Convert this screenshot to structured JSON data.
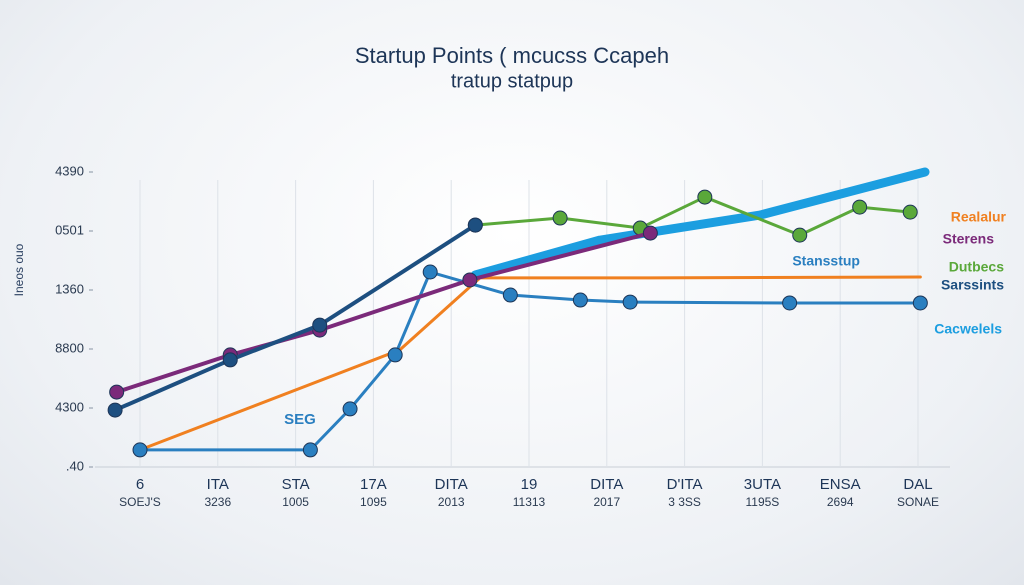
{
  "chart_data": {
    "type": "line",
    "title": "Startup Points ( mcucss Ccapeh",
    "subtitle": "tratup statpup",
    "y_label": "Ineos ouo",
    "y_labels": [
      "4390",
      "0501",
      "1360",
      "8800",
      "4300",
      ".40"
    ],
    "categories": [
      "6",
      "ITA",
      "STA",
      "17A",
      "DITA",
      "19",
      "DITA",
      "D'ITA",
      "3UTA",
      "ENSA",
      "DAL"
    ],
    "category_sublabels": [
      "SOEJ'S",
      "3236",
      "1005",
      "1095",
      "2013",
      "11313",
      "2017",
      "3 3SS",
      "1195S",
      "2694",
      "SONAE"
    ],
    "annotation": "SEG",
    "xlim": [
      -0.4,
      10.45
    ],
    "ylim": [
      0,
      100
    ],
    "grid": true,
    "series": [
      {
        "name": "Cacwelels",
        "color": "#1c9ee0",
        "width": 9,
        "markers": false,
        "x": [
          4.31,
          5.91,
          7.97,
          10.09
        ],
        "values": [
          65.1,
          76.9,
          85.4,
          100
        ]
      },
      {
        "name": "Dutbecs",
        "color": "#5aa83a",
        "width": 3,
        "markers": true,
        "x": [
          4.31,
          5.4,
          6.43,
          7.26,
          8.48,
          9.25,
          9.9
        ],
        "values": [
          82.0,
          84.4,
          81.0,
          91.5,
          78.6,
          88.1,
          86.4
        ]
      },
      {
        "name": "Realalur",
        "color": "#f08020",
        "width": 3,
        "markers": false,
        "x": [
          0,
          3.34,
          4.37,
          6.56,
          10.03
        ],
        "values": [
          5.8,
          39.7,
          64.1,
          64.1,
          64.4
        ]
      },
      {
        "name": "Stansstup",
        "color": "#2a7fc0",
        "width": 3,
        "markers": true,
        "x": [
          0,
          2.19,
          2.7,
          3.28,
          3.73,
          4.76,
          5.66,
          6.3,
          8.35,
          10.03
        ],
        "values": [
          5.8,
          5.8,
          19.7,
          38.0,
          66.1,
          58.3,
          56.6,
          55.9,
          55.6,
          55.6
        ]
      },
      {
        "name": "Sterens",
        "color": "#7b2a7a",
        "width": 4,
        "markers": true,
        "x": [
          -0.3,
          1.16,
          2.31,
          4.24,
          6.56
        ],
        "values": [
          25.4,
          38.0,
          46.4,
          63.4,
          79.3
        ]
      },
      {
        "name": "Sarssints",
        "color": "#1d4f80",
        "width": 4,
        "markers": true,
        "x": [
          -0.32,
          1.16,
          2.31,
          4.31
        ],
        "values": [
          19.3,
          36.3,
          48.1,
          82.0
        ]
      }
    ]
  }
}
